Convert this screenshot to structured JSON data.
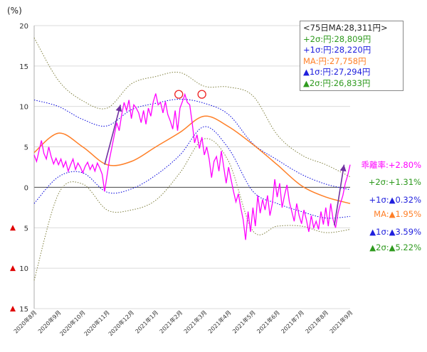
{
  "chart_data": {
    "type": "line",
    "ylabel": "(%)",
    "ylim": [
      -15,
      20
    ],
    "yticks": [
      {
        "value": 20,
        "label": "20",
        "negative": false
      },
      {
        "value": 15,
        "label": "15",
        "negative": false
      },
      {
        "value": 10,
        "label": "10",
        "negative": false
      },
      {
        "value": 5,
        "label": "5",
        "negative": false
      },
      {
        "value": 0,
        "label": "0",
        "negative": false
      },
      {
        "value": -5,
        "label": "5",
        "negative": true
      },
      {
        "value": -10,
        "label": "10",
        "negative": true
      },
      {
        "value": -15,
        "label": "15",
        "negative": true
      }
    ],
    "xticks": [
      "2020年8月",
      "2020年9月",
      "2020年10月",
      "2020年11月",
      "2020年12月",
      "2021年1月",
      "2021年2月",
      "2021年3月",
      "2021年4月",
      "2021年5月",
      "2021年6月",
      "2021年7月",
      "2021年8月",
      "2021年9月"
    ],
    "grid": true,
    "colors": {
      "deviation": "#ff00ff",
      "ma": "#ff7f27",
      "sigma1": "#0000dd",
      "sigma2": "#808040",
      "arrow": "#7030a0",
      "marker": "#ee2020"
    },
    "legend_box": {
      "title": "<75日MA:28,311円>",
      "lines": [
        {
          "text": "+2σ:円:28,809円",
          "color": "#2e9a1e"
        },
        {
          "text": "+1σ:円:28,220円",
          "color": "#1f1fdd"
        },
        {
          "text": "MA:円:27,758円",
          "color": "#ff7f27"
        },
        {
          "text": "▲1σ:円:27,294円",
          "color": "#1f1fdd"
        },
        {
          "text": "▲2σ:円:26,833円",
          "color": "#2e9a1e"
        }
      ]
    },
    "right_labels": [
      {
        "text": "乖離率:+2.80%",
        "color": "#ff00ff",
        "y": 2.8
      },
      {
        "text": "+2σ:+1.31%",
        "color": "#2e9a1e",
        "y": 0.6
      },
      {
        "text": "+1σ:▲0.32%",
        "color": "#1f1fdd",
        "y": -1.6
      },
      {
        "text": "MA:▲1.95%",
        "color": "#ff7f27",
        "y": -3.4
      },
      {
        "text": "▲1σ:▲3.59%",
        "color": "#1f1fdd",
        "y": -5.6
      },
      {
        "text": "▲2σ:▲5.22%",
        "color": "#2e9a1e",
        "y": -7.5
      }
    ],
    "series": [
      {
        "key": "deviation",
        "x": [
          0,
          0.1,
          0.2,
          0.3,
          0.4,
          0.5,
          0.6,
          0.7,
          0.8,
          0.9,
          1.0,
          1.1,
          1.2,
          1.3,
          1.4,
          1.5,
          1.6,
          1.7,
          1.8,
          1.9,
          2.0,
          2.1,
          2.2,
          2.3,
          2.4,
          2.5,
          2.6,
          2.7,
          2.8,
          2.9,
          3.0,
          3.1,
          3.2,
          3.3,
          3.4,
          3.5,
          3.6,
          3.7,
          3.8,
          3.9,
          4.0,
          4.1,
          4.2,
          4.3,
          4.4,
          4.5,
          4.6,
          4.7,
          4.8,
          4.9,
          5.0,
          5.1,
          5.2,
          5.3,
          5.4,
          5.5,
          5.6,
          5.7,
          5.8,
          5.9,
          6.0,
          6.1,
          6.2,
          6.3,
          6.4,
          6.5,
          6.6,
          6.7,
          6.8,
          6.9,
          7.0,
          7.1,
          7.2,
          7.3,
          7.4,
          7.5,
          7.6,
          7.7,
          7.8,
          7.9,
          8.0,
          8.1,
          8.2,
          8.3,
          8.4,
          8.5,
          8.6,
          8.7,
          8.8,
          8.9,
          9.0,
          9.1,
          9.2,
          9.3,
          9.4,
          9.5,
          9.6,
          9.7,
          9.8,
          9.9,
          10.0,
          10.1,
          10.2,
          10.3,
          10.4,
          10.5,
          10.6,
          10.7,
          10.8,
          10.9,
          11.0,
          11.1,
          11.2,
          11.3,
          11.4,
          11.5,
          11.6,
          11.7,
          11.8,
          11.9,
          12.0,
          12.1,
          12.2,
          12.3,
          12.4,
          12.5,
          12.6,
          12.7,
          12.8,
          12.9,
          13.0
        ],
        "y": [
          4.0,
          3.2,
          4.5,
          5.8,
          4.2,
          3.5,
          5.0,
          3.8,
          2.9,
          3.6,
          2.8,
          3.5,
          2.5,
          3.2,
          2.0,
          2.8,
          3.5,
          2.2,
          3.0,
          2.5,
          1.8,
          2.6,
          3.1,
          2.2,
          2.8,
          2.0,
          3.0,
          2.4,
          1.6,
          -0.5,
          1.5,
          3.5,
          5.0,
          6.5,
          8.0,
          7.0,
          9.0,
          10.5,
          9.5,
          10.8,
          8.5,
          10.2,
          9.8,
          9.2,
          8.0,
          9.5,
          7.8,
          9.8,
          8.8,
          10.6,
          11.6,
          10.2,
          10.5,
          9.2,
          10.6,
          9.0,
          8.2,
          7.2,
          9.5,
          7.0,
          9.8,
          10.6,
          11.5,
          10.5,
          10.2,
          8.0,
          5.5,
          6.5,
          4.8,
          6.2,
          4.0,
          5.0,
          3.5,
          1.2,
          3.2,
          3.8,
          2.0,
          4.5,
          2.5,
          0.5,
          2.5,
          1.0,
          -0.5,
          -1.8,
          -0.8,
          -2.5,
          -4.0,
          -6.5,
          -3.0,
          -5.5,
          -2.5,
          -4.8,
          -1.0,
          -3.2,
          -1.5,
          -2.8,
          -1.0,
          -3.5,
          -2.0,
          1.0,
          -1.2,
          0.5,
          -2.5,
          -1.0,
          0.3,
          -1.8,
          -3.0,
          -4.2,
          -2.0,
          -3.5,
          -4.5,
          -2.8,
          -4.0,
          -5.5,
          -3.5,
          -5.0,
          -4.2,
          -5.2,
          -3.0,
          -4.6,
          -2.5,
          -4.8,
          -2.0,
          -4.0,
          -5.0,
          -3.2,
          -2.0,
          -1.0,
          0.5,
          1.5,
          2.8
        ]
      },
      {
        "key": "ma",
        "x": [
          0,
          1,
          2,
          3,
          4,
          5,
          6,
          7,
          8,
          9,
          10,
          11,
          12,
          13
        ],
        "y": [
          4.3,
          6.7,
          5.0,
          2.8,
          3.2,
          5.0,
          6.8,
          8.8,
          7.5,
          5.3,
          2.8,
          0.2,
          -1.2,
          -2.0
        ]
      },
      {
        "key": "sigma1_up",
        "x": [
          0,
          1,
          2,
          3,
          4,
          5,
          6,
          7,
          8,
          9,
          10,
          11,
          12,
          13
        ],
        "y": [
          10.8,
          10.0,
          8.4,
          7.6,
          9.6,
          10.4,
          10.9,
          10.4,
          9.0,
          5.4,
          3.4,
          1.6,
          0.4,
          -0.3
        ]
      },
      {
        "key": "sigma1_dn",
        "x": [
          0,
          1,
          2,
          3,
          4,
          5,
          6,
          7,
          8,
          9,
          10,
          11,
          12,
          13
        ],
        "y": [
          -2.0,
          1.3,
          1.8,
          -0.6,
          -0.2,
          1.5,
          4.0,
          7.5,
          4.8,
          -0.5,
          -2.0,
          -3.0,
          -3.8,
          -3.6
        ]
      },
      {
        "key": "sigma2_up",
        "x": [
          0,
          1,
          2,
          3,
          4,
          5,
          6,
          7,
          8,
          9,
          10,
          11,
          12,
          13
        ],
        "y": [
          18.5,
          13.2,
          10.7,
          9.8,
          12.8,
          13.7,
          14.2,
          12.5,
          12.4,
          11.3,
          6.5,
          4.0,
          2.8,
          1.3
        ]
      },
      {
        "key": "sigma2_dn",
        "x": [
          0,
          1,
          2,
          3,
          4,
          5,
          6,
          7,
          8,
          9,
          10,
          11,
          12,
          13
        ],
        "y": [
          -11.5,
          -0.8,
          0.4,
          -2.8,
          -2.8,
          -1.6,
          1.8,
          6.0,
          3.2,
          -5.4,
          -4.8,
          -4.8,
          -5.6,
          -5.2
        ]
      }
    ],
    "arrows": [
      {
        "x1": 2.9,
        "y1": 2.8,
        "x2": 3.55,
        "y2": 10.2
      },
      {
        "x1": 12.35,
        "y1": -4.7,
        "x2": 12.75,
        "y2": 2.8
      }
    ],
    "circle_markers": [
      {
        "x": 5.95,
        "y": 11.5
      },
      {
        "x": 6.9,
        "y": 11.5
      }
    ]
  }
}
